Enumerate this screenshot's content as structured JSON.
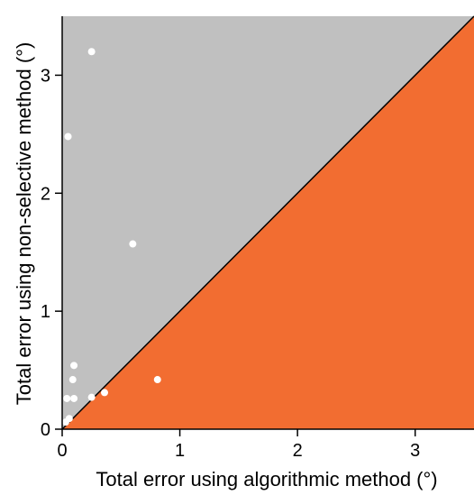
{
  "chart_data": {
    "type": "scatter",
    "title": "",
    "xlabel": "Total error using algorithmic method (°)",
    "ylabel": "Total error using non-selective method (°)",
    "xlim": [
      0,
      3.5
    ],
    "ylim": [
      0,
      3.5
    ],
    "xticks": [
      "0",
      "1",
      "2",
      "3"
    ],
    "yticks": [
      "0",
      "1",
      "2",
      "3"
    ],
    "grid": false,
    "legend": "none",
    "diagonal_line": {
      "from": [
        0,
        0
      ],
      "to": [
        3.5,
        3.5
      ]
    },
    "colors": {
      "upper_region": "#c0c0c0",
      "lower_region": "#f26d31",
      "points": "#ffffff",
      "diagonal": "#000000"
    },
    "series": [
      {
        "x": [
          0.25,
          0.05,
          0.6,
          0.1,
          0.09,
          0.04,
          0.1,
          0.25,
          0.36,
          0.81,
          0.06,
          0.03
        ],
        "y": [
          3.2,
          2.48,
          1.57,
          0.54,
          0.42,
          0.26,
          0.26,
          0.27,
          0.31,
          0.42,
          0.09,
          0.06
        ]
      }
    ]
  }
}
